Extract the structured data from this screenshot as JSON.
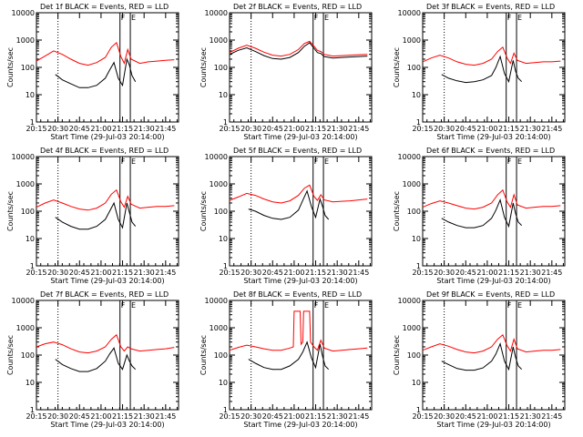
{
  "chart_data": [
    {
      "type": "line",
      "title": "Det 1f BLACK = Events, RED = LLD",
      "xlabel": "Start Time (29-Jul-03 20:14:00)",
      "ylabel": "Counts/sec",
      "x_ticks": [
        "20:15",
        "20:30",
        "20:45",
        "21:00",
        "21:15",
        "21:30",
        "21:45"
      ],
      "y_ticks": [
        "1",
        "10",
        "100",
        "1000",
        "10000"
      ],
      "ylim": [
        1,
        10000
      ],
      "xlim": [
        20.25,
        21.9
      ],
      "flags": [
        "F",
        "E"
      ],
      "series": [
        {
          "name": "BLACK = Events",
          "color": "#000000",
          "x": [
            20.47,
            20.55,
            20.65,
            20.75,
            20.85,
            20.95,
            21.05,
            21.1,
            21.15,
            21.2,
            21.25,
            21.3,
            21.33,
            21.36,
            21.4
          ],
          "y": [
            55,
            35,
            25,
            18,
            18,
            22,
            40,
            80,
            150,
            40,
            22,
            200,
            120,
            50,
            30
          ]
        },
        {
          "name": "RED = LLD",
          "color": "#ff0000",
          "x": [
            20.25,
            20.35,
            20.45,
            20.55,
            20.65,
            20.75,
            20.85,
            20.95,
            21.05,
            21.12,
            21.18,
            21.23,
            21.27,
            21.31,
            21.35,
            21.45,
            21.55,
            21.65,
            21.75,
            21.85
          ],
          "y": [
            170,
            260,
            400,
            300,
            200,
            140,
            120,
            150,
            230,
            550,
            800,
            250,
            140,
            450,
            200,
            140,
            160,
            170,
            180,
            190
          ]
        }
      ]
    },
    {
      "type": "line",
      "title": "Det 2f BLACK = Events, RED = LLD",
      "xlabel": "Start Time (29-Jul-03 20:14:00)",
      "ylabel": "Counts/sec",
      "x_ticks": [
        "20:15",
        "20:30",
        "20:45",
        "21:00",
        "21:15",
        "21:30",
        "21:45"
      ],
      "y_ticks": [
        "1",
        "10",
        "100",
        "1000",
        "10000"
      ],
      "ylim": [
        1,
        10000
      ],
      "xlim": [
        20.25,
        21.9
      ],
      "flags": [
        "F",
        "E"
      ],
      "series": [
        {
          "name": "BLACK = Events",
          "color": "#000000",
          "x": [
            20.25,
            20.35,
            20.45,
            20.55,
            20.65,
            20.75,
            20.85,
            20.95,
            21.05,
            21.12,
            21.18,
            21.23,
            21.27,
            21.31,
            21.35,
            21.45,
            21.55,
            21.65,
            21.75,
            21.85
          ],
          "y": [
            300,
            420,
            520,
            380,
            270,
            210,
            200,
            230,
            350,
            600,
            800,
            500,
            350,
            320,
            250,
            220,
            230,
            240,
            250,
            260
          ]
        },
        {
          "name": "RED = LLD",
          "color": "#ff0000",
          "x": [
            20.25,
            20.35,
            20.45,
            20.55,
            20.65,
            20.75,
            20.85,
            20.95,
            21.05,
            21.12,
            21.18,
            21.23,
            21.27,
            21.31,
            21.35,
            21.45,
            21.55,
            21.65,
            21.75,
            21.85
          ],
          "y": [
            350,
            500,
            650,
            500,
            360,
            280,
            260,
            300,
            450,
            750,
            900,
            600,
            420,
            380,
            300,
            260,
            270,
            280,
            290,
            300
          ]
        }
      ]
    },
    {
      "type": "line",
      "title": "Det 3f BLACK = Events, RED = LLD",
      "xlabel": "Start Time (29-Jul-03 20:14:00)",
      "ylabel": "Counts/sec",
      "x_ticks": [
        "20:15",
        "20:30",
        "20:45",
        "21:00",
        "21:15",
        "21:30",
        "21:45"
      ],
      "y_ticks": [
        "1",
        "10",
        "100",
        "1000",
        "10000"
      ],
      "ylim": [
        1,
        10000
      ],
      "xlim": [
        20.25,
        21.9
      ],
      "flags": [
        "F",
        "E"
      ],
      "series": [
        {
          "name": "BLACK = Events",
          "color": "#000000",
          "x": [
            20.47,
            20.55,
            20.65,
            20.75,
            20.85,
            20.95,
            21.05,
            21.1,
            21.15,
            21.2,
            21.25,
            21.3,
            21.33,
            21.36,
            21.4
          ],
          "y": [
            55,
            40,
            32,
            28,
            30,
            35,
            50,
            100,
            250,
            60,
            30,
            180,
            70,
            40,
            30
          ]
        },
        {
          "name": "RED = LLD",
          "color": "#ff0000",
          "x": [
            20.25,
            20.35,
            20.45,
            20.55,
            20.65,
            20.75,
            20.85,
            20.95,
            21.05,
            21.12,
            21.18,
            21.23,
            21.27,
            21.31,
            21.35,
            21.45,
            21.55,
            21.65,
            21.75,
            21.85
          ],
          "y": [
            160,
            220,
            280,
            220,
            160,
            130,
            120,
            140,
            200,
            380,
            550,
            220,
            140,
            330,
            180,
            140,
            150,
            160,
            160,
            170
          ]
        }
      ]
    },
    {
      "type": "line",
      "title": "Det 4f BLACK = Events, RED = LLD",
      "xlabel": "Start Time (29-Jul-03 20:14:00)",
      "ylabel": "Counts/sec",
      "x_ticks": [
        "20:15",
        "20:30",
        "20:45",
        "21:00",
        "21:15",
        "21:30",
        "21:45"
      ],
      "y_ticks": [
        "1",
        "10",
        "100",
        "1000",
        "10000"
      ],
      "ylim": [
        1,
        10000
      ],
      "xlim": [
        20.25,
        21.9
      ],
      "flags": [
        "F",
        "E"
      ],
      "series": [
        {
          "name": "BLACK = Events",
          "color": "#000000",
          "x": [
            20.47,
            20.55,
            20.65,
            20.75,
            20.85,
            20.95,
            21.05,
            21.1,
            21.15,
            21.2,
            21.25,
            21.3,
            21.33,
            21.36,
            21.4
          ],
          "y": [
            60,
            40,
            28,
            22,
            22,
            28,
            50,
            100,
            200,
            50,
            25,
            200,
            90,
            40,
            28
          ]
        },
        {
          "name": "RED = LLD",
          "color": "#ff0000",
          "x": [
            20.25,
            20.35,
            20.45,
            20.55,
            20.65,
            20.75,
            20.85,
            20.95,
            21.05,
            21.12,
            21.18,
            21.23,
            21.27,
            21.31,
            21.35,
            21.45,
            21.55,
            21.65,
            21.75,
            21.85
          ],
          "y": [
            140,
            200,
            260,
            200,
            150,
            120,
            110,
            130,
            200,
            420,
            600,
            220,
            140,
            350,
            180,
            130,
            140,
            150,
            150,
            160
          ]
        }
      ]
    },
    {
      "type": "line",
      "title": "Det 5f BLACK = Events, RED = LLD",
      "xlabel": "Start Time (29-Jul-03 20:14:00)",
      "ylabel": "Counts/sec",
      "x_ticks": [
        "20:15",
        "20:30",
        "20:45",
        "21:00",
        "21:15",
        "21:30",
        "21:45"
      ],
      "y_ticks": [
        "1",
        "10",
        "100",
        "1000",
        "10000"
      ],
      "ylim": [
        1,
        10000
      ],
      "xlim": [
        20.25,
        21.9
      ],
      "flags": [
        "F",
        "E"
      ],
      "series": [
        {
          "name": "BLACK = Events",
          "color": "#000000",
          "x": [
            20.47,
            20.55,
            20.65,
            20.75,
            20.85,
            20.95,
            21.05,
            21.1,
            21.15,
            21.2,
            21.25,
            21.3,
            21.33,
            21.36,
            21.4
          ],
          "y": [
            120,
            100,
            70,
            55,
            50,
            60,
            110,
            250,
            550,
            150,
            60,
            280,
            150,
            70,
            50
          ]
        },
        {
          "name": "RED = LLD",
          "color": "#ff0000",
          "x": [
            20.25,
            20.35,
            20.45,
            20.55,
            20.65,
            20.75,
            20.85,
            20.95,
            21.05,
            21.12,
            21.18,
            21.23,
            21.27,
            21.31,
            21.35,
            21.45,
            21.55,
            21.65,
            21.75,
            21.85
          ],
          "y": [
            250,
            330,
            450,
            380,
            280,
            220,
            200,
            240,
            380,
            700,
            900,
            350,
            250,
            400,
            260,
            220,
            230,
            240,
            260,
            280
          ]
        }
      ]
    },
    {
      "type": "line",
      "title": "Det 6f BLACK = Events, RED = LLD",
      "xlabel": "Start Time (29-Jul-03 20:14:00)",
      "ylabel": "Counts/sec",
      "x_ticks": [
        "20:15",
        "20:30",
        "20:45",
        "21:00",
        "21:15",
        "21:30",
        "21:45"
      ],
      "y_ticks": [
        "1",
        "10",
        "100",
        "1000",
        "10000"
      ],
      "ylim": [
        1,
        10000
      ],
      "xlim": [
        20.25,
        21.9
      ],
      "flags": [
        "F",
        "E"
      ],
      "series": [
        {
          "name": "BLACK = Events",
          "color": "#000000",
          "x": [
            20.47,
            20.55,
            20.65,
            20.75,
            20.85,
            20.95,
            21.05,
            21.1,
            21.15,
            21.2,
            21.25,
            21.3,
            21.33,
            21.36,
            21.4
          ],
          "y": [
            55,
            40,
            30,
            25,
            25,
            30,
            55,
            110,
            260,
            60,
            28,
            200,
            80,
            40,
            30
          ]
        },
        {
          "name": "RED = LLD",
          "color": "#ff0000",
          "x": [
            20.25,
            20.35,
            20.45,
            20.55,
            20.65,
            20.75,
            20.85,
            20.95,
            21.05,
            21.12,
            21.18,
            21.23,
            21.27,
            21.31,
            21.35,
            21.45,
            21.55,
            21.65,
            21.75,
            21.85
          ],
          "y": [
            140,
            190,
            240,
            200,
            160,
            130,
            120,
            140,
            200,
            400,
            600,
            220,
            140,
            400,
            170,
            130,
            140,
            150,
            150,
            160
          ]
        }
      ]
    },
    {
      "type": "line",
      "title": "Det 7f BLACK = Events, RED = LLD",
      "xlabel": "Start Time (29-Jul-03 20:14:00)",
      "ylabel": "Counts/sec",
      "x_ticks": [
        "20:15",
        "20:30",
        "20:45",
        "21:00",
        "21:15",
        "21:30",
        "21:45"
      ],
      "y_ticks": [
        "1",
        "10",
        "100",
        "1000",
        "10000"
      ],
      "ylim": [
        1,
        10000
      ],
      "xlim": [
        20.25,
        21.9
      ],
      "flags": [
        "F",
        "E"
      ],
      "series": [
        {
          "name": "BLACK = Events",
          "color": "#000000",
          "x": [
            20.47,
            20.55,
            20.65,
            20.75,
            20.85,
            20.95,
            21.05,
            21.1,
            21.15,
            21.2,
            21.25,
            21.3,
            21.33,
            21.36,
            21.4
          ],
          "y": [
            70,
            45,
            32,
            25,
            25,
            32,
            60,
            110,
            180,
            50,
            30,
            100,
            60,
            40,
            30
          ]
        },
        {
          "name": "RED = LLD",
          "color": "#ff0000",
          "x": [
            20.25,
            20.35,
            20.45,
            20.55,
            20.65,
            20.75,
            20.85,
            20.95,
            21.05,
            21.12,
            21.18,
            21.23,
            21.27,
            21.31,
            21.35,
            21.45,
            21.55,
            21.65,
            21.75,
            21.85
          ],
          "y": [
            200,
            260,
            300,
            240,
            170,
            130,
            120,
            140,
            200,
            380,
            550,
            200,
            140,
            200,
            170,
            140,
            150,
            160,
            170,
            190
          ]
        }
      ]
    },
    {
      "type": "line",
      "title": "Det 8f BLACK = Events, RED = LLD",
      "xlabel": "Start Time (29-Jul-03 20:14:00)",
      "ylabel": "Counts/sec",
      "x_ticks": [
        "20:15",
        "20:30",
        "20:45",
        "21:00",
        "21:15",
        "21:30",
        "21:45"
      ],
      "y_ticks": [
        "1",
        "10",
        "100",
        "1000",
        "10000"
      ],
      "ylim": [
        1,
        10000
      ],
      "xlim": [
        20.25,
        21.9
      ],
      "flags": [
        "F",
        "E"
      ],
      "series": [
        {
          "name": "BLACK = Events",
          "color": "#000000",
          "x": [
            20.47,
            20.55,
            20.65,
            20.75,
            20.85,
            20.95,
            21.05,
            21.1,
            21.15,
            21.2,
            21.25,
            21.3,
            21.33,
            21.36,
            21.4
          ],
          "y": [
            70,
            50,
            35,
            30,
            30,
            40,
            70,
            130,
            300,
            80,
            35,
            250,
            90,
            40,
            30
          ]
        },
        {
          "name": "RED = LLD",
          "color": "#ff0000",
          "x": [
            20.25,
            20.35,
            20.45,
            20.55,
            20.65,
            20.75,
            20.85,
            20.95,
            20.99,
            21.0,
            21.07,
            21.08,
            21.1,
            21.11,
            21.18,
            21.19,
            21.23,
            21.27,
            21.31,
            21.35,
            21.45,
            21.55,
            21.65,
            21.75,
            21.85
          ],
          "y": [
            150,
            190,
            230,
            200,
            170,
            150,
            150,
            180,
            200,
            4000,
            4000,
            250,
            300,
            4000,
            4000,
            300,
            200,
            150,
            350,
            180,
            140,
            150,
            160,
            170,
            180
          ]
        }
      ]
    },
    {
      "type": "line",
      "title": "Det 9f BLACK = Events, RED = LLD",
      "xlabel": "Start Time (29-Jul-03 20:14:00)",
      "ylabel": "Counts/sec",
      "x_ticks": [
        "20:15",
        "20:30",
        "20:45",
        "21:00",
        "21:15",
        "21:30",
        "21:45"
      ],
      "y_ticks": [
        "1",
        "10",
        "100",
        "1000",
        "10000"
      ],
      "ylim": [
        1,
        10000
      ],
      "xlim": [
        20.25,
        21.9
      ],
      "flags": [
        "F",
        "E"
      ],
      "series": [
        {
          "name": "BLACK = Events",
          "color": "#000000",
          "x": [
            20.47,
            20.55,
            20.65,
            20.75,
            20.85,
            20.95,
            21.05,
            21.1,
            21.15,
            21.2,
            21.25,
            21.3,
            21.33,
            21.36,
            21.4
          ],
          "y": [
            60,
            45,
            32,
            28,
            28,
            34,
            60,
            110,
            260,
            60,
            30,
            200,
            80,
            40,
            30
          ]
        },
        {
          "name": "RED = LLD",
          "color": "#ff0000",
          "x": [
            20.25,
            20.35,
            20.45,
            20.55,
            20.65,
            20.75,
            20.85,
            20.95,
            21.05,
            21.12,
            21.18,
            21.23,
            21.27,
            21.31,
            21.35,
            21.45,
            21.55,
            21.65,
            21.75,
            21.85
          ],
          "y": [
            150,
            200,
            260,
            210,
            160,
            130,
            120,
            140,
            200,
            380,
            550,
            220,
            140,
            380,
            170,
            130,
            140,
            150,
            150,
            160
          ]
        }
      ]
    }
  ]
}
